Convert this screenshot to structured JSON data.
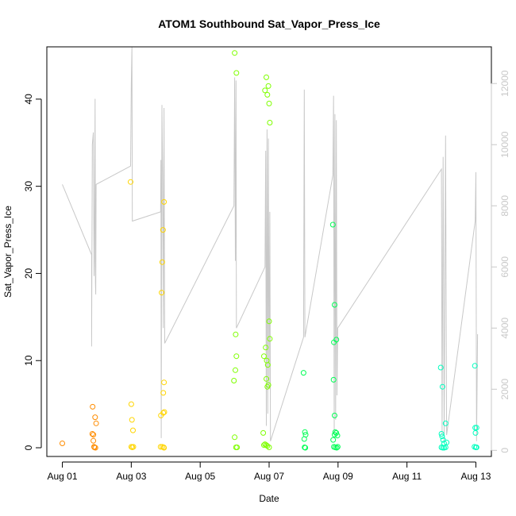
{
  "chart_data": {
    "type": "scatter",
    "title": "ATOM1 Southbound Sat_Vapor_Press_Ice",
    "xlabel": "Date",
    "ylabel": "Sat_Vapor_Press_Ice",
    "x_ticks": [
      "Aug 01",
      "Aug 03",
      "Aug 05",
      "Aug 07",
      "Aug 09",
      "Aug 11",
      "Aug 13"
    ],
    "x_tick_days": [
      1,
      3,
      5,
      7,
      9,
      11,
      13
    ],
    "xlim_days": [
      0.55,
      13.45
    ],
    "y_ticks": [
      0,
      10,
      20,
      30,
      40
    ],
    "ylim": [
      -1,
      46
    ],
    "y2_ticks": [
      0,
      2000,
      4000,
      6000,
      8000,
      10000,
      12000
    ],
    "y2lim": [
      -200,
      13200
    ],
    "grid": false,
    "colors": {
      "axis": "#000000",
      "altitude_line": "#c8c8c8",
      "right_axis": "#c8c8c8"
    },
    "series": [
      {
        "color": "#ff8c00",
        "points": [
          [
            1.0,
            0.5
          ],
          [
            1.88,
            4.7
          ],
          [
            1.9,
            1.5
          ],
          [
            1.87,
            1.6
          ],
          [
            1.9,
            0.8
          ],
          [
            1.92,
            0.1
          ],
          [
            1.95,
            3.5
          ],
          [
            1.98,
            2.8
          ],
          [
            1.96,
            0.0
          ],
          [
            1.93,
            0.05
          ]
        ]
      },
      {
        "color": "#ffd500",
        "points": [
          [
            3.0,
            5.0
          ],
          [
            3.02,
            3.2
          ],
          [
            3.05,
            2.0
          ],
          [
            3.0,
            0.1
          ],
          [
            3.03,
            0.05
          ],
          [
            3.06,
            0.1
          ],
          [
            2.98,
            30.5
          ],
          [
            3.85,
            0.1
          ],
          [
            3.86,
            3.7
          ],
          [
            3.88,
            17.8
          ],
          [
            3.9,
            21.3
          ],
          [
            3.92,
            25.0
          ],
          [
            3.93,
            6.3
          ],
          [
            3.95,
            28.2
          ],
          [
            3.95,
            7.5
          ],
          [
            3.93,
            4.0
          ],
          [
            3.96,
            4.1
          ],
          [
            3.9,
            0.1
          ],
          [
            3.95,
            0.0
          ],
          [
            3.94,
            0.05
          ]
        ]
      },
      {
        "color": "#7fff00",
        "points": [
          [
            6.0,
            45.3
          ],
          [
            6.05,
            43.0
          ],
          [
            5.98,
            7.7
          ],
          [
            6.02,
            8.9
          ],
          [
            6.05,
            10.5
          ],
          [
            6.03,
            13.0
          ],
          [
            6.0,
            1.2
          ],
          [
            6.04,
            0.05
          ],
          [
            6.07,
            0.05
          ],
          [
            6.88,
            41.0
          ],
          [
            6.92,
            42.5
          ],
          [
            6.95,
            40.5
          ],
          [
            6.98,
            41.5
          ],
          [
            7.0,
            39.5
          ],
          [
            7.02,
            37.3
          ],
          [
            6.85,
            10.5
          ],
          [
            6.9,
            11.5
          ],
          [
            6.93,
            10.0
          ],
          [
            6.96,
            9.5
          ],
          [
            6.92,
            7.9
          ],
          [
            6.95,
            7.0
          ],
          [
            6.98,
            7.2
          ],
          [
            7.0,
            14.5
          ],
          [
            7.02,
            12.5
          ],
          [
            6.83,
            1.7
          ],
          [
            6.85,
            0.3
          ],
          [
            6.88,
            0.4
          ],
          [
            6.92,
            0.3
          ],
          [
            6.95,
            0.2
          ],
          [
            7.0,
            0.05
          ]
        ]
      },
      {
        "color": "#00ff55",
        "points": [
          [
            8.0,
            8.6
          ],
          [
            8.02,
            1.0
          ],
          [
            8.04,
            1.8
          ],
          [
            8.06,
            1.5
          ],
          [
            8.03,
            0.05
          ],
          [
            8.05,
            0.0
          ],
          [
            8.85,
            25.6
          ],
          [
            8.9,
            16.4
          ],
          [
            8.88,
            12.1
          ],
          [
            8.95,
            12.4
          ],
          [
            8.87,
            7.8
          ],
          [
            8.9,
            3.7
          ],
          [
            8.86,
            0.9
          ],
          [
            8.9,
            1.5
          ],
          [
            8.92,
            1.8
          ],
          [
            8.95,
            1.7
          ],
          [
            8.98,
            1.4
          ],
          [
            8.88,
            0.1
          ],
          [
            8.92,
            0.05
          ],
          [
            8.96,
            0.0
          ],
          [
            8.99,
            0.1
          ]
        ]
      },
      {
        "color": "#00ffbf",
        "points": [
          [
            11.98,
            9.2
          ],
          [
            12.03,
            7.0
          ],
          [
            12.0,
            1.6
          ],
          [
            12.02,
            1.3
          ],
          [
            12.05,
            0.9
          ],
          [
            12.08,
            0.5
          ],
          [
            12.12,
            2.8
          ],
          [
            12.15,
            0.6
          ],
          [
            12.0,
            0.05
          ],
          [
            12.04,
            0.0
          ],
          [
            12.08,
            0.0
          ],
          [
            12.12,
            0.05
          ],
          [
            12.97,
            9.4
          ],
          [
            12.98,
            2.3
          ],
          [
            13.02,
            2.3
          ],
          [
            12.99,
            1.7
          ],
          [
            12.96,
            0.1
          ],
          [
            13.0,
            0.05
          ],
          [
            13.02,
            0.05
          ]
        ]
      }
    ],
    "altitude_line": {
      "name": "",
      "color": "#c8c8c8",
      "axis": "right",
      "points": [
        [
          1.0,
          8700
        ],
        [
          1.85,
          6400
        ],
        [
          1.85,
          3400
        ],
        [
          1.87,
          10000
        ],
        [
          1.9,
          10400
        ],
        [
          1.92,
          5700
        ],
        [
          1.93,
          6200
        ],
        [
          1.95,
          11500
        ],
        [
          1.96,
          5500
        ],
        [
          1.97,
          5100
        ],
        [
          1.98,
          8700
        ],
        [
          2.98,
          9300
        ],
        [
          3.0,
          12000
        ],
        [
          3.02,
          13200
        ],
        [
          3.03,
          7500
        ],
        [
          3.85,
          7800
        ],
        [
          3.86,
          9500
        ],
        [
          3.87,
          400
        ],
        [
          3.89,
          11300
        ],
        [
          3.91,
          9000
        ],
        [
          3.93,
          4000
        ],
        [
          3.95,
          11200
        ],
        [
          3.97,
          3500
        ],
        [
          5.98,
          8000
        ],
        [
          6.0,
          12200
        ],
        [
          6.02,
          6200
        ],
        [
          6.04,
          12100
        ],
        [
          6.05,
          4000
        ],
        [
          6.88,
          6000
        ],
        [
          6.9,
          9800
        ],
        [
          6.92,
          800
        ],
        [
          6.94,
          10500
        ],
        [
          6.96,
          1200
        ],
        [
          6.98,
          10200
        ],
        [
          7.0,
          2000
        ],
        [
          7.02,
          7800
        ],
        [
          7.04,
          300
        ],
        [
          8.0,
          3700
        ],
        [
          8.02,
          11800
        ],
        [
          8.04,
          3700
        ],
        [
          8.85,
          9000
        ],
        [
          8.87,
          11600
        ],
        [
          8.89,
          500
        ],
        [
          8.91,
          11000
        ],
        [
          8.93,
          1000
        ],
        [
          8.95,
          10800
        ],
        [
          8.97,
          1800
        ],
        [
          8.99,
          4000
        ],
        [
          12.0,
          9200
        ],
        [
          12.02,
          500
        ],
        [
          12.05,
          9600
        ],
        [
          12.08,
          300
        ],
        [
          12.12,
          10300
        ],
        [
          12.15,
          500
        ],
        [
          12.98,
          7500
        ],
        [
          13.0,
          9100
        ],
        [
          13.02,
          300
        ],
        [
          13.05,
          3800
        ]
      ]
    }
  }
}
